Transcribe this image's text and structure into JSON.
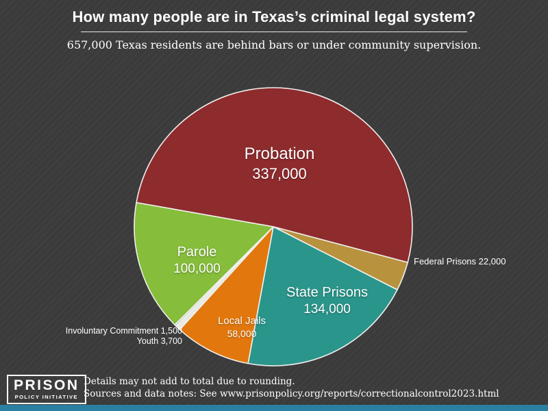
{
  "page": {
    "title": "How many people are in Texas’s criminal legal system?",
    "subtitle": "657,000 Texas residents are behind bars or under community supervision.",
    "footer": {
      "note": "Details may not add to total due to rounding.",
      "sources": "Sources and data notes: See www.prisonpolicy.org/reports/correctionalcontrol2023.html"
    },
    "logo": {
      "line1": "PRISON",
      "line2": "POLICY INITIATIVE"
    },
    "colors": {
      "background": "#3b3b3b",
      "bottom_bar": "#2b7fa3",
      "text": "#ffffff"
    }
  },
  "chart_data": {
    "type": "pie",
    "title": "How many people are in Texas’s criminal legal system?",
    "total": 657000,
    "total_display": "657,000",
    "start_angle_deg": 280,
    "legend_position": "labels-on-slices",
    "slices": [
      {
        "label": "Probation",
        "value": 337000,
        "display": "337,000",
        "color": "#8e2b2d"
      },
      {
        "label": "Federal Prisons",
        "value": 22000,
        "display": "22,000",
        "color": "#b8923d"
      },
      {
        "label": "State Prisons",
        "value": 134000,
        "display": "134,000",
        "color": "#2a958b"
      },
      {
        "label": "Local Jails",
        "value": 58000,
        "display": "58,000",
        "color": "#e2770d"
      },
      {
        "label": "Youth",
        "value": 3700,
        "display": "3,700",
        "color": "#e9e9e4"
      },
      {
        "label": "Involuntary Commitment",
        "value": 1500,
        "display": "1,500",
        "color": "#c9c9c3"
      },
      {
        "label": "Parole",
        "value": 100000,
        "display": "100,000",
        "color": "#86bd3b"
      }
    ]
  }
}
